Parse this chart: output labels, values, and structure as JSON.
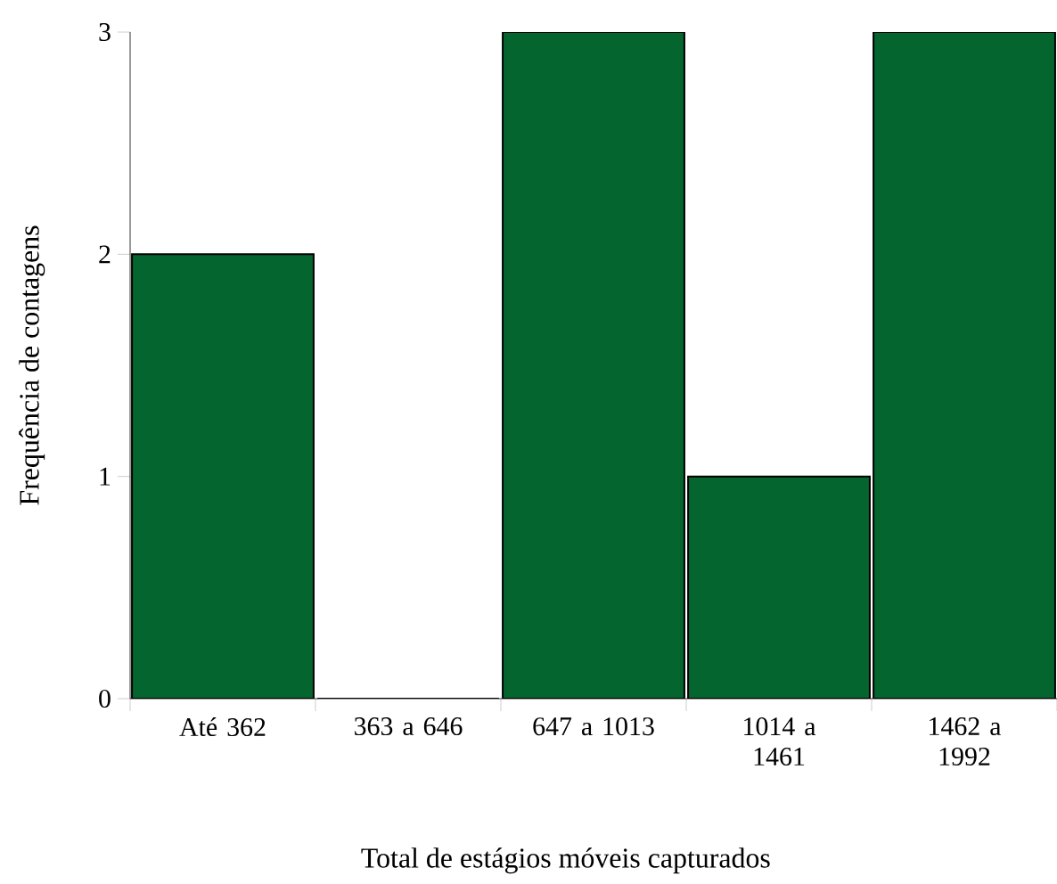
{
  "chart_data": {
    "type": "bar",
    "xlabel": "Total de estágios móveis capturados",
    "ylabel": "Frequência de contagens",
    "categories": [
      "Até 362",
      "363 a 646",
      "647 a 1013",
      "1014 a 1461",
      "1462 a 1992"
    ],
    "values": [
      2,
      0,
      3,
      1,
      3
    ],
    "color": "#05652f",
    "ylim": [
      0,
      3
    ],
    "yticks": [
      0,
      1,
      2,
      3
    ]
  }
}
